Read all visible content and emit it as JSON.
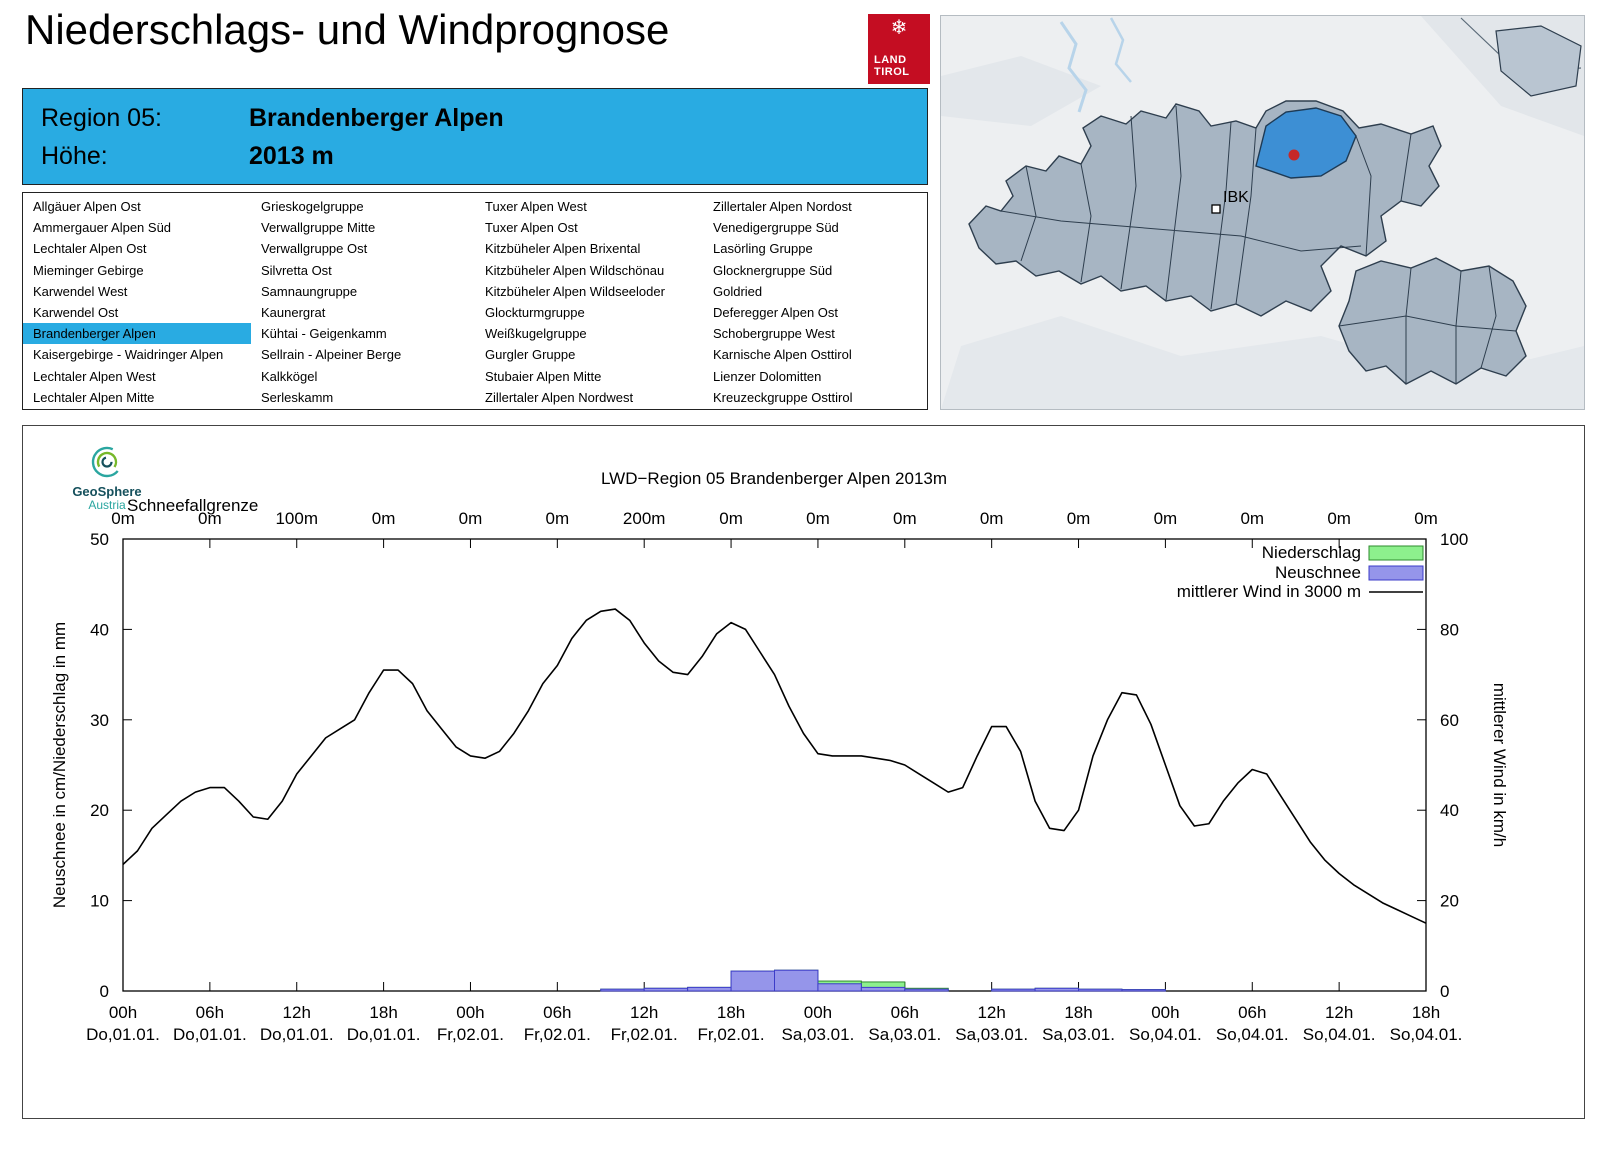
{
  "header": {
    "title": "Niederschlags- und Windprognose",
    "logo_line1": "LAND",
    "logo_line2": "TIROL",
    "logo_color": "#c40d22"
  },
  "region_info": {
    "region_label": "Region 05:",
    "region_name": "Brandenberger Alpen",
    "height_label": "Höhe:",
    "height_value": "2013 m",
    "background": "#29abe2"
  },
  "region_list": {
    "selected": "Brandenberger Alpen",
    "highlight_color": "#29abe2",
    "columns": [
      [
        "Allgäuer Alpen Ost",
        "Ammergauer Alpen Süd",
        "Lechtaler Alpen Ost",
        "Mieminger Gebirge",
        "Karwendel West",
        "Karwendel Ost",
        "Brandenberger Alpen",
        "Kaisergebirge - Waidringer Alpen",
        "Lechtaler Alpen West",
        "Lechtaler Alpen Mitte"
      ],
      [
        "Grieskogelgruppe",
        "Verwallgruppe Mitte",
        "Verwallgruppe Ost",
        "Silvretta Ost",
        "Samnaungruppe",
        "Kaunergrat",
        "Kühtai - Geigenkamm",
        "Sellrain - Alpeiner Berge",
        "Kalkkögel",
        "Serleskamm"
      ],
      [
        "Tuxer Alpen West",
        "Tuxer Alpen Ost",
        "Kitzbüheler Alpen Brixental",
        "Kitzbüheler Alpen Wildschönau",
        "Kitzbüheler Alpen Wildseeloder",
        "Glockturmgruppe",
        "Weißkugelgruppe",
        "Gurgler Gruppe",
        "Stubaier Alpen Mitte",
        "Zillertaler Alpen Nordwest"
      ],
      [
        "Zillertaler Alpen Nordost",
        "Venedigergruppe Süd",
        "Lasörling Gruppe",
        "Glocknergruppe Süd",
        "Goldried",
        "Deferegger Alpen Ost",
        "Schobergruppe West",
        "Karnische Alpen Osttirol",
        "Lienzer Dolomitten",
        "Kreuzeckgruppe Osttirol"
      ]
    ]
  },
  "map": {
    "city_label": "IBK",
    "region_fill": "#a7b5c3",
    "region_selected_fill": "#3d8fd4",
    "marker_color": "#c62828"
  },
  "geosphere": {
    "name": "GeoSphere",
    "sub": "Austria"
  },
  "chart_data": {
    "type": "line+bar",
    "title": "LWD−Region 05 Brandenberger Alpen 2013m",
    "ylabel_left": "Neuschnee in cm/Niederschlag in mm",
    "ylabel_right": "mittlerer Wind in km/h",
    "ylim_left": [
      0,
      50
    ],
    "ylim_right": [
      0,
      100
    ],
    "x_hours_total": 90,
    "x_ticks": [
      {
        "hour": 0,
        "time": "00h",
        "date": "Do,01.01."
      },
      {
        "hour": 6,
        "time": "06h",
        "date": "Do,01.01."
      },
      {
        "hour": 12,
        "time": "12h",
        "date": "Do,01.01."
      },
      {
        "hour": 18,
        "time": "18h",
        "date": "Do,01.01."
      },
      {
        "hour": 24,
        "time": "00h",
        "date": "Fr,02.01."
      },
      {
        "hour": 30,
        "time": "06h",
        "date": "Fr,02.01."
      },
      {
        "hour": 36,
        "time": "12h",
        "date": "Fr,02.01."
      },
      {
        "hour": 42,
        "time": "18h",
        "date": "Fr,02.01."
      },
      {
        "hour": 48,
        "time": "00h",
        "date": "Sa,03.01."
      },
      {
        "hour": 54,
        "time": "06h",
        "date": "Sa,03.01."
      },
      {
        "hour": 60,
        "time": "12h",
        "date": "Sa,03.01."
      },
      {
        "hour": 66,
        "time": "18h",
        "date": "Sa,03.01."
      },
      {
        "hour": 72,
        "time": "00h",
        "date": "So,04.01."
      },
      {
        "hour": 78,
        "time": "06h",
        "date": "So,04.01."
      },
      {
        "hour": 84,
        "time": "12h",
        "date": "So,04.01."
      },
      {
        "hour": 90,
        "time": "18h",
        "date": "So,04.01."
      }
    ],
    "schneefallgrenze": {
      "label": "Schneefallgrenze",
      "values": [
        "0m",
        "0m",
        "100m",
        "0m",
        "0m",
        "0m",
        "200m",
        "0m",
        "0m",
        "0m",
        "0m",
        "0m",
        "0m",
        "0m",
        "0m",
        "0m"
      ]
    },
    "legend": [
      {
        "label": "Niederschlag",
        "type": "box",
        "fill": "#8df08d",
        "stroke": "#2e8b2e"
      },
      {
        "label": "Neuschnee",
        "type": "box",
        "fill": "#9595ea",
        "stroke": "#3c3cc8"
      },
      {
        "label": "mittlerer Wind in 3000 m",
        "type": "line",
        "stroke": "#000000"
      }
    ],
    "colors": {
      "niederschlag_fill": "#8df08d",
      "niederschlag_stroke": "#2e8b2e",
      "neuschnee_fill": "#9595ea",
      "neuschnee_stroke": "#3c3cc8",
      "wind": "#000000"
    },
    "bars_3h": [
      {
        "start": 33,
        "niederschlag": 0.2,
        "neuschnee": 0.2
      },
      {
        "start": 36,
        "niederschlag": 0.3,
        "neuschnee": 0.3
      },
      {
        "start": 39,
        "niederschlag": 0.4,
        "neuschnee": 0.4
      },
      {
        "start": 42,
        "niederschlag": 2.2,
        "neuschnee": 2.2
      },
      {
        "start": 45,
        "niederschlag": 2.3,
        "neuschnee": 2.3
      },
      {
        "start": 48,
        "niederschlag": 1.1,
        "neuschnee": 0.8
      },
      {
        "start": 51,
        "niederschlag": 1.0,
        "neuschnee": 0.4
      },
      {
        "start": 54,
        "niederschlag": 0.3,
        "neuschnee": 0.2
      },
      {
        "start": 60,
        "niederschlag": 0.2,
        "neuschnee": 0.2
      },
      {
        "start": 63,
        "niederschlag": 0.3,
        "neuschnee": 0.3
      },
      {
        "start": 66,
        "niederschlag": 0.2,
        "neuschnee": 0.2
      },
      {
        "start": 69,
        "niederschlag": 0.15,
        "neuschnee": 0.15
      }
    ],
    "wind_kmh": [
      [
        0,
        28
      ],
      [
        1,
        31
      ],
      [
        2,
        36
      ],
      [
        3,
        39
      ],
      [
        4,
        42
      ],
      [
        5,
        44
      ],
      [
        6,
        45
      ],
      [
        7,
        45
      ],
      [
        8,
        42
      ],
      [
        9,
        38.5
      ],
      [
        10,
        38
      ],
      [
        11,
        42
      ],
      [
        12,
        48
      ],
      [
        13,
        52
      ],
      [
        14,
        56
      ],
      [
        15,
        58
      ],
      [
        16,
        60
      ],
      [
        17,
        66
      ],
      [
        18,
        71
      ],
      [
        19,
        71
      ],
      [
        20,
        68
      ],
      [
        21,
        62
      ],
      [
        22,
        58
      ],
      [
        23,
        54
      ],
      [
        24,
        52
      ],
      [
        25,
        51.5
      ],
      [
        26,
        53
      ],
      [
        27,
        57
      ],
      [
        28,
        62
      ],
      [
        29,
        68
      ],
      [
        30,
        72
      ],
      [
        31,
        78
      ],
      [
        32,
        82
      ],
      [
        33,
        84
      ],
      [
        34,
        84.5
      ],
      [
        35,
        82
      ],
      [
        36,
        77
      ],
      [
        37,
        73
      ],
      [
        38,
        70.5
      ],
      [
        39,
        70
      ],
      [
        40,
        74
      ],
      [
        41,
        79
      ],
      [
        42,
        81.5
      ],
      [
        43,
        80
      ],
      [
        44,
        75
      ],
      [
        45,
        70
      ],
      [
        46,
        63
      ],
      [
        47,
        57
      ],
      [
        48,
        52.5
      ],
      [
        49,
        52
      ],
      [
        50,
        52
      ],
      [
        51,
        52
      ],
      [
        52,
        51.5
      ],
      [
        53,
        51
      ],
      [
        54,
        50
      ],
      [
        55,
        48
      ],
      [
        56,
        46
      ],
      [
        57,
        44
      ],
      [
        58,
        45
      ],
      [
        59,
        52
      ],
      [
        60,
        58.5
      ],
      [
        61,
        58.5
      ],
      [
        62,
        53
      ],
      [
        63,
        42
      ],
      [
        64,
        36
      ],
      [
        65,
        35.5
      ],
      [
        66,
        40
      ],
      [
        67,
        52
      ],
      [
        68,
        60
      ],
      [
        69,
        66
      ],
      [
        70,
        65.5
      ],
      [
        71,
        59
      ],
      [
        72,
        50
      ],
      [
        73,
        41
      ],
      [
        74,
        36.5
      ],
      [
        75,
        37
      ],
      [
        76,
        42
      ],
      [
        77,
        46
      ],
      [
        78,
        49
      ],
      [
        79,
        48
      ],
      [
        80,
        43
      ],
      [
        81,
        38
      ],
      [
        82,
        33
      ],
      [
        83,
        29
      ],
      [
        84,
        26
      ],
      [
        85,
        23.5
      ],
      [
        86,
        21.5
      ],
      [
        87,
        19.5
      ],
      [
        88,
        18
      ],
      [
        89,
        16.5
      ],
      [
        90,
        15
      ]
    ]
  }
}
